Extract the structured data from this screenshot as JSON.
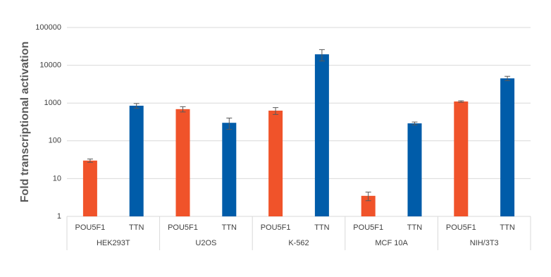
{
  "chart_data": {
    "type": "bar",
    "y_label": "Fold transcriptional activation",
    "categories": [
      "POU5F1",
      "TTN",
      "POU5F1",
      "TTN",
      "POU5F1",
      "TTN",
      "POU5F1",
      "TTN",
      "POU5F1",
      "TTN"
    ],
    "groups": [
      "HEK293T",
      "U2OS",
      "K-562",
      "MCF 10A",
      "NIH/3T3"
    ],
    "values": [
      30,
      850,
      690,
      300,
      630,
      19500,
      3.5,
      290,
      1100,
      4500
    ],
    "errors": [
      3,
      120,
      110,
      100,
      130,
      6500,
      0.9,
      25,
      50,
      600
    ],
    "colors": [
      "#f0532a",
      "#005ca9",
      "#f0532a",
      "#005ca9",
      "#f0532a",
      "#005ca9",
      "#f0532a",
      "#005ca9",
      "#f0532a",
      "#005ca9"
    ],
    "log_scale": true,
    "ylim": [
      1,
      100000
    ],
    "yticks": [
      1,
      10,
      100,
      1000,
      10000,
      100000
    ],
    "grid": true
  }
}
